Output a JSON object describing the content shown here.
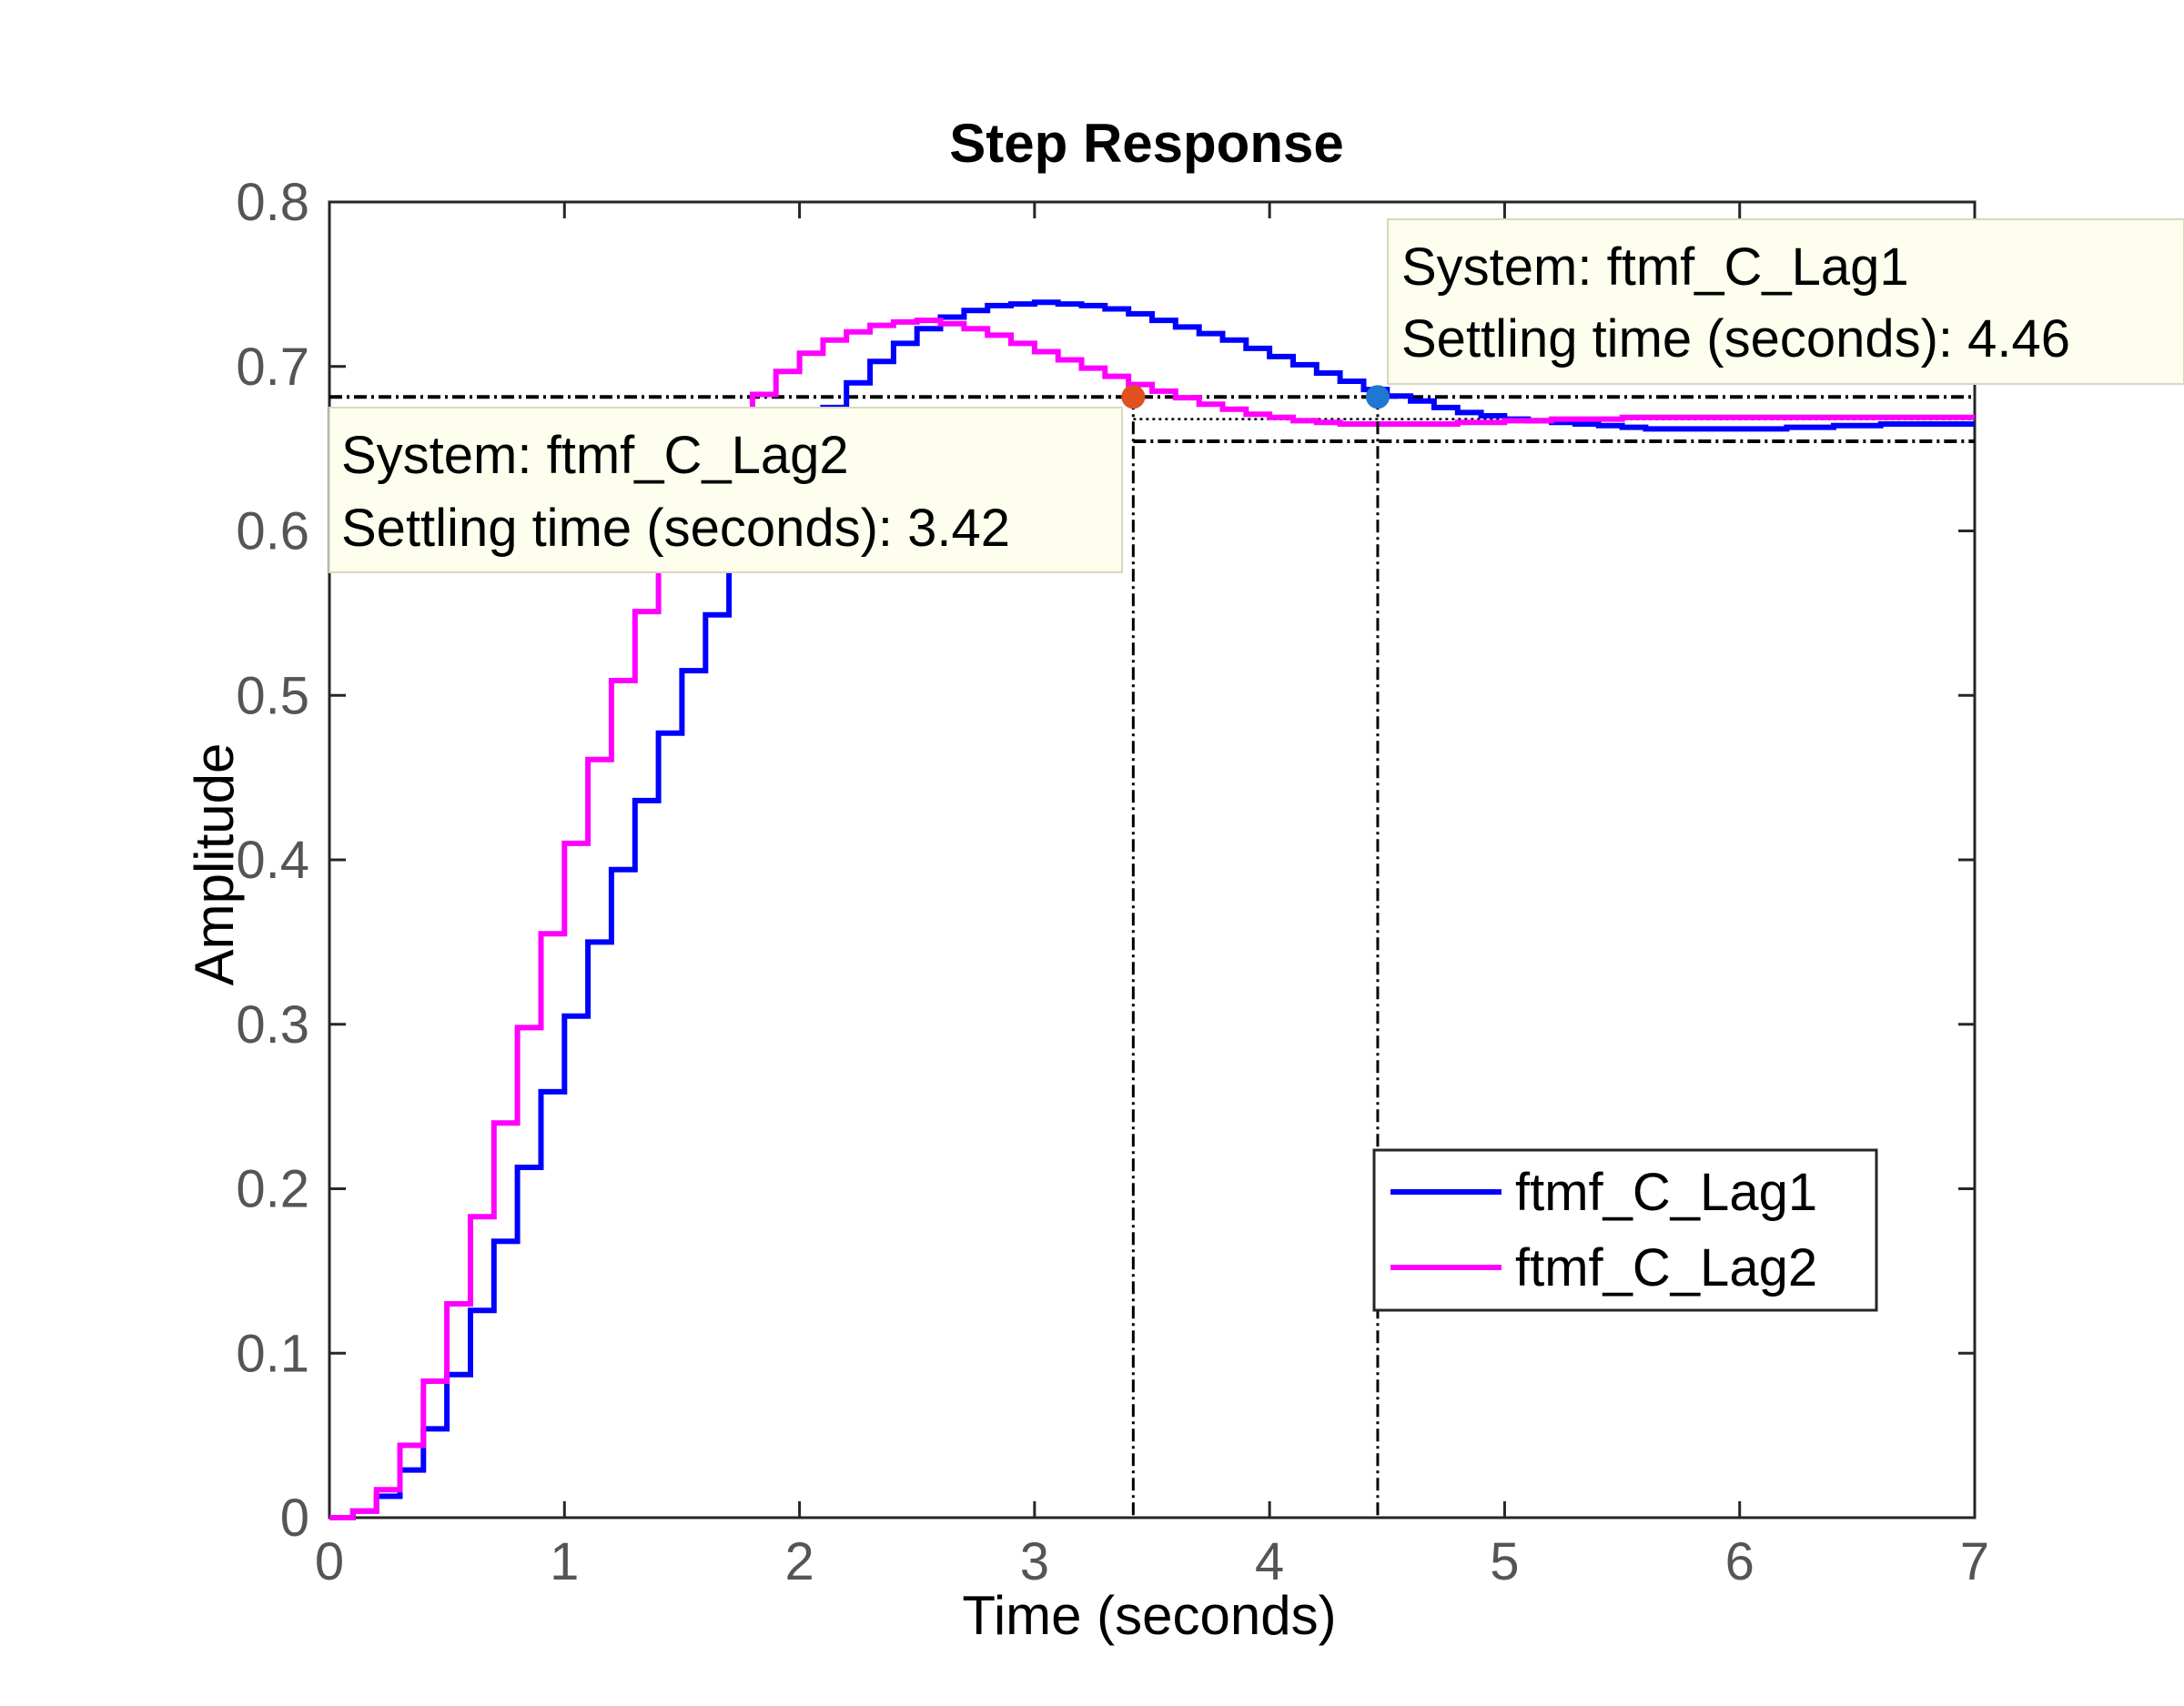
{
  "chart_data": {
    "type": "line",
    "title": "Step Response",
    "xlabel": "Time (seconds)",
    "ylabel": "Amplitude",
    "xlim": [
      0,
      7
    ],
    "ylim": [
      0,
      0.8
    ],
    "xticks": [
      "0",
      "1",
      "2",
      "3",
      "4",
      "5",
      "6",
      "7"
    ],
    "yticks": [
      "0",
      "0.1",
      "0.2",
      "0.3",
      "0.4",
      "0.5",
      "0.6",
      "0.7",
      "0.8"
    ],
    "grid": false,
    "legend_position": "lower-right",
    "settling_band": {
      "upper": 0.6815,
      "lower": 0.6545,
      "final": 0.668
    },
    "series": [
      {
        "name": "ftmf_C_Lag1",
        "color": "#0000ff",
        "step": true,
        "dt": 0.1,
        "values": [
          0,
          0.004,
          0.013,
          0.029,
          0.054,
          0.087,
          0.126,
          0.168,
          0.213,
          0.259,
          0.305,
          0.35,
          0.394,
          0.436,
          0.477,
          0.515,
          0.549,
          0.58,
          0.608,
          0.632,
          0.652,
          0.675,
          0.69,
          0.703,
          0.714,
          0.723,
          0.73,
          0.734,
          0.737,
          0.738,
          0.739,
          0.738,
          0.737,
          0.735,
          0.732,
          0.728,
          0.724,
          0.72,
          0.716,
          0.711,
          0.706,
          0.701,
          0.696,
          0.691,
          0.686,
          0.682,
          0.679,
          0.675,
          0.672,
          0.67,
          0.668,
          0.667,
          0.666,
          0.665,
          0.664,
          0.663,
          0.662,
          0.662,
          0.662,
          0.662,
          0.662,
          0.662,
          0.663,
          0.663,
          0.664,
          0.664,
          0.665,
          0.665,
          0.665,
          0.665,
          0.665
        ]
      },
      {
        "name": "ftmf_C_Lag2",
        "color": "#ff00ff",
        "step": true,
        "dt": 0.1,
        "values": [
          0,
          0.004,
          0.017,
          0.044,
          0.083,
          0.13,
          0.183,
          0.24,
          0.298,
          0.355,
          0.41,
          0.461,
          0.509,
          0.551,
          0.59,
          0.624,
          0.651,
          0.664,
          0.683,
          0.697,
          0.708,
          0.716,
          0.721,
          0.725,
          0.727,
          0.728,
          0.726,
          0.723,
          0.719,
          0.714,
          0.709,
          0.704,
          0.699,
          0.694,
          0.689,
          0.685,
          0.681,
          0.677,
          0.674,
          0.671,
          0.669,
          0.667,
          0.666,
          0.665,
          0.665,
          0.665,
          0.665,
          0.665,
          0.666,
          0.666,
          0.667,
          0.667,
          0.668,
          0.668,
          0.668,
          0.669,
          0.669,
          0.669,
          0.669,
          0.669,
          0.669,
          0.669,
          0.669,
          0.669,
          0.669,
          0.669,
          0.669,
          0.669,
          0.669,
          0.669,
          0.669
        ]
      }
    ],
    "markers": [
      {
        "series": "ftmf_C_Lag2",
        "x": 3.42,
        "y": 0.6815,
        "color": "#e05020"
      },
      {
        "series": "ftmf_C_Lag1",
        "x": 4.46,
        "y": 0.6815,
        "color": "#1f77d0"
      }
    ],
    "annotations": [
      {
        "line1": "System: ftmf_C_Lag1",
        "line2": "Settling time (seconds): 4.46",
        "anchor": "top-right"
      },
      {
        "line1": "System: ftmf_C_Lag2",
        "line2": "Settling time (seconds): 3.42",
        "anchor": "top-left"
      }
    ]
  }
}
